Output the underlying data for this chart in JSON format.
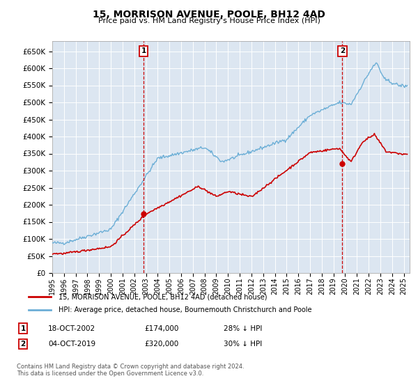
{
  "title": "15, MORRISON AVENUE, POOLE, BH12 4AD",
  "subtitle": "Price paid vs. HM Land Registry's House Price Index (HPI)",
  "ytick_values": [
    0,
    50000,
    100000,
    150000,
    200000,
    250000,
    300000,
    350000,
    400000,
    450000,
    500000,
    550000,
    600000,
    650000
  ],
  "ylim": [
    0,
    680000
  ],
  "xlim_start": 1995.0,
  "xlim_end": 2025.5,
  "background_color": "#dce6f1",
  "hpi_color": "#6baed6",
  "price_color": "#cc0000",
  "vline_color": "#cc0000",
  "marker1_year": 2002.79,
  "marker1_price": 174000,
  "marker1_label": "1",
  "marker2_year": 2019.75,
  "marker2_price": 320000,
  "marker2_label": "2",
  "legend_entries": [
    "15, MORRISON AVENUE, POOLE, BH12 4AD (detached house)",
    "HPI: Average price, detached house, Bournemouth Christchurch and Poole"
  ],
  "annotation1": [
    "1",
    "18-OCT-2002",
    "£174,000",
    "28% ↓ HPI"
  ],
  "annotation2": [
    "2",
    "04-OCT-2019",
    "£320,000",
    "30% ↓ HPI"
  ],
  "footnote": "Contains HM Land Registry data © Crown copyright and database right 2024.\nThis data is licensed under the Open Government Licence v3.0.",
  "xtick_years": [
    1995,
    1996,
    1997,
    1998,
    1999,
    2000,
    2001,
    2002,
    2003,
    2004,
    2005,
    2006,
    2007,
    2008,
    2009,
    2010,
    2011,
    2012,
    2013,
    2014,
    2015,
    2016,
    2017,
    2018,
    2019,
    2020,
    2021,
    2022,
    2023,
    2024,
    2025
  ]
}
